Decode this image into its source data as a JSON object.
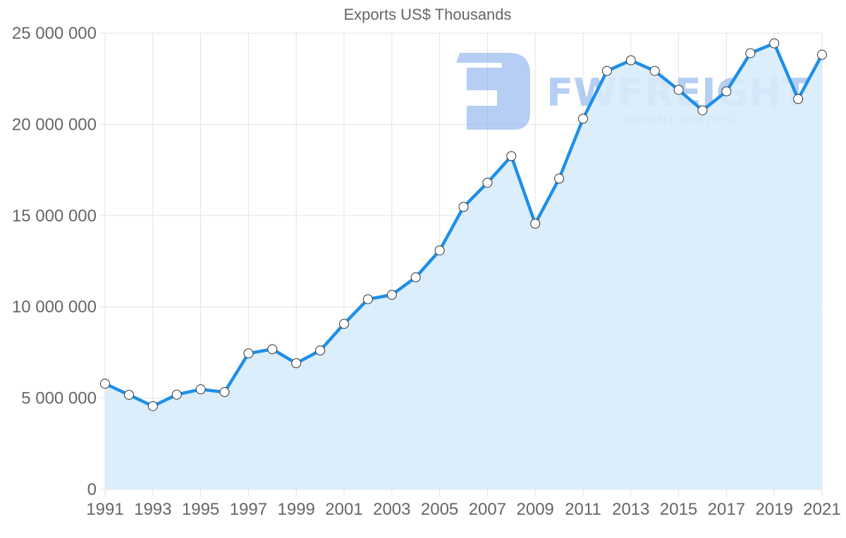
{
  "chart_data": {
    "type": "area",
    "title": "Exports US$ Thousands",
    "xlabel": "",
    "ylabel": "",
    "ylim": [
      0,
      25000000
    ],
    "y_ticks": [
      0,
      5000000,
      10000000,
      15000000,
      20000000,
      25000000
    ],
    "y_tick_labels": [
      "0",
      "5 000 000",
      "10 000 000",
      "15 000 000",
      "20 000 000",
      "25 000 000"
    ],
    "x_tick_labels": [
      "1991",
      "1993",
      "1995",
      "1997",
      "1999",
      "2001",
      "2003",
      "2005",
      "2007",
      "2009",
      "2011",
      "2013",
      "2015",
      "2017",
      "2019",
      "2021"
    ],
    "grid": true,
    "legend": "none",
    "categories": [
      "1991",
      "1992",
      "1993",
      "1994",
      "1995",
      "1996",
      "1997",
      "1998",
      "1999",
      "2000",
      "2001",
      "2002",
      "2003",
      "2004",
      "2005",
      "2006",
      "2007",
      "2008",
      "2009",
      "2010",
      "2011",
      "2012",
      "2013",
      "2014",
      "2015",
      "2016",
      "2017",
      "2018",
      "2019",
      "2020",
      "2021"
    ],
    "series": [
      {
        "name": "Exports US$ Thousands",
        "color": "#1e8fe8",
        "fill": "#d8ebfb",
        "values": [
          5790000,
          5180000,
          4560000,
          5190000,
          5480000,
          5330000,
          7450000,
          7680000,
          6910000,
          7610000,
          9070000,
          10420000,
          10660000,
          11620000,
          13090000,
          15480000,
          16800000,
          18260000,
          14560000,
          17030000,
          20310000,
          22930000,
          23510000,
          22930000,
          21890000,
          20770000,
          21810000,
          23900000,
          24440000,
          21390000,
          23820000
        ]
      }
    ]
  },
  "watermark": {
    "brand": "FWFREIGHT",
    "tagline": "FREIGHT SHIPPING",
    "color": "#8fb4ee"
  }
}
